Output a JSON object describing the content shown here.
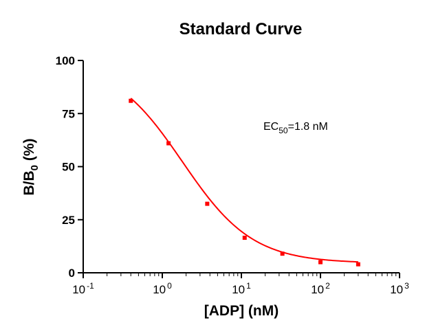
{
  "chart_data": {
    "type": "scatter",
    "title": "Standard Curve",
    "xlabel": "[ADP] (nM)",
    "ylabel": {
      "main": "B/B",
      "sub": "0",
      "suffix": " (%)"
    },
    "x_scale": "log",
    "xlim": [
      0.1,
      1000
    ],
    "ylim": [
      0,
      100
    ],
    "x_ticks": [
      {
        "base": "10",
        "exp": "-1"
      },
      {
        "base": "10",
        "exp": "0"
      },
      {
        "base": "10",
        "exp": "1"
      },
      {
        "base": "10",
        "exp": "2"
      },
      {
        "base": "10",
        "exp": "3"
      }
    ],
    "x_tick_values": [
      0.1,
      1,
      10,
      100,
      1000
    ],
    "y_ticks": [
      "0",
      "25",
      "50",
      "75",
      "100"
    ],
    "y_tick_values": [
      0,
      25,
      50,
      75,
      100
    ],
    "series": [
      {
        "color": "#ff0000",
        "points": [
          {
            "x": 0.4,
            "y": 81
          },
          {
            "x": 1.2,
            "y": 61
          },
          {
            "x": 3.7,
            "y": 32.5
          },
          {
            "x": 11,
            "y": 16.5
          },
          {
            "x": 33,
            "y": 9
          },
          {
            "x": 100,
            "y": 5
          },
          {
            "x": 300,
            "y": 4
          }
        ]
      }
    ],
    "fit_curve": {
      "color": "#ff0000",
      "top": 100,
      "bottom": 4.5,
      "ec50": 1.8,
      "hill": 0.98,
      "x_range": [
        0.4,
        300
      ]
    },
    "annotation": {
      "text": "EC",
      "sub": "50",
      "suffix": "=1.8 nM"
    },
    "grid": false,
    "legend": "none"
  }
}
